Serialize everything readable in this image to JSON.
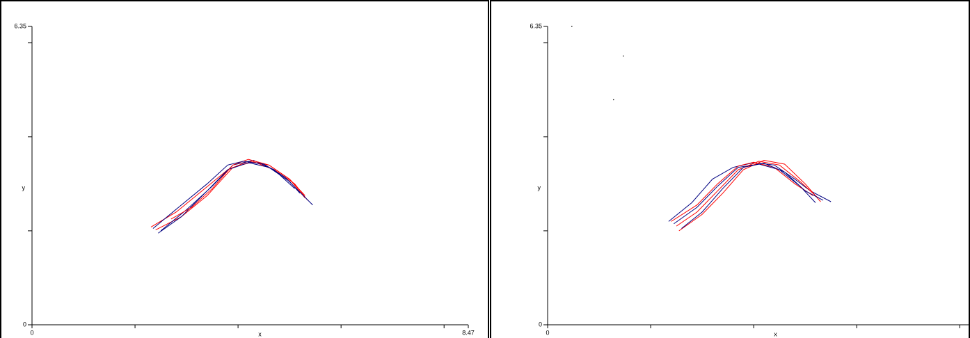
{
  "chart_data": [
    {
      "type": "line",
      "xlabel": "x",
      "ylabel": "y",
      "xlim": [
        0,
        8.47
      ],
      "ylim": [
        0,
        6.35
      ],
      "xticks": [
        2,
        4,
        6,
        8
      ],
      "yticks": [
        2,
        4,
        6
      ],
      "series": [
        {
          "color": "#ff0000",
          "x": [
            2.31,
            2.8,
            3.3,
            3.8,
            4.2,
            4.6,
            5.0,
            5.3
          ],
          "values": [
            2.08,
            2.4,
            2.85,
            3.3,
            3.48,
            3.4,
            3.1,
            2.7
          ]
        },
        {
          "color": "#ff0000",
          "x": [
            2.4,
            2.9,
            3.4,
            3.9,
            4.3,
            4.7,
            5.1,
            5.35
          ],
          "values": [
            2.02,
            2.3,
            2.75,
            3.35,
            3.47,
            3.3,
            3.0,
            2.65
          ]
        },
        {
          "color": "#000080",
          "x": [
            2.45,
            2.9,
            3.4,
            3.8,
            4.2,
            4.6,
            5.0,
            5.2
          ],
          "values": [
            1.95,
            2.3,
            2.85,
            3.3,
            3.45,
            3.35,
            3.05,
            2.8
          ]
        },
        {
          "color": "#000080",
          "x": [
            2.5,
            3.0,
            3.5,
            3.9,
            4.3,
            4.7,
            5.1
          ],
          "values": [
            2.0,
            2.45,
            2.95,
            3.4,
            3.5,
            3.3,
            2.9
          ]
        },
        {
          "color": "#ff0000",
          "x": [
            2.7,
            3.1,
            3.5,
            3.9,
            4.2,
            4.6,
            5.0,
            5.3
          ],
          "values": [
            2.25,
            2.5,
            2.9,
            3.4,
            3.52,
            3.4,
            3.1,
            2.75
          ]
        },
        {
          "color": "#000080",
          "x": [
            2.35,
            2.9,
            3.4,
            3.8,
            4.1,
            4.5,
            4.9,
            5.45
          ],
          "values": [
            2.05,
            2.55,
            3.0,
            3.4,
            3.48,
            3.42,
            3.15,
            2.55
          ]
        }
      ]
    },
    {
      "type": "line",
      "xlabel": "x",
      "ylabel": "y",
      "xlim": [
        0,
        8.47
      ],
      "ylim": [
        0,
        6.35
      ],
      "xticks": [
        2,
        4,
        6,
        8
      ],
      "yticks": [
        2,
        4,
        6
      ],
      "series": [
        {
          "color": "#000080",
          "x": [
            2.35,
            2.8,
            3.2,
            3.6,
            4.0,
            4.4,
            4.8,
            5.1,
            5.5
          ],
          "values": [
            2.2,
            2.6,
            3.1,
            3.35,
            3.45,
            3.4,
            3.1,
            2.85,
            2.62
          ]
        },
        {
          "color": "#000080",
          "x": [
            2.45,
            2.9,
            3.3,
            3.7,
            4.1,
            4.5,
            4.9,
            5.2
          ],
          "values": [
            2.15,
            2.5,
            2.95,
            3.35,
            3.42,
            3.3,
            2.95,
            2.6
          ]
        },
        {
          "color": "#ff0000",
          "x": [
            2.5,
            2.9,
            3.3,
            3.7,
            4.1,
            4.5,
            4.9,
            5.25
          ],
          "values": [
            2.1,
            2.4,
            2.85,
            3.3,
            3.48,
            3.4,
            3.05,
            2.7
          ]
        },
        {
          "color": "#ff0000",
          "x": [
            2.55,
            3.0,
            3.4,
            3.8,
            4.2,
            4.6,
            5.0,
            5.3
          ],
          "values": [
            2.0,
            2.35,
            2.8,
            3.3,
            3.5,
            3.42,
            3.0,
            2.62
          ]
        },
        {
          "color": "#ff0000",
          "x": [
            2.4,
            2.9,
            3.3,
            3.7,
            4.0,
            4.4,
            4.8,
            5.15
          ],
          "values": [
            2.2,
            2.55,
            3.0,
            3.38,
            3.46,
            3.35,
            3.0,
            2.75
          ]
        },
        {
          "color": "#000080",
          "x": [
            2.6,
            3.0,
            3.4,
            3.8,
            4.2,
            4.6,
            5.0,
            5.35
          ],
          "values": [
            2.05,
            2.4,
            2.9,
            3.35,
            3.44,
            3.25,
            2.85,
            2.65
          ]
        }
      ],
      "dots": {
        "x": [
          0.47,
          1.47,
          1.28
        ],
        "values": [
          6.35,
          5.72,
          4.79
        ]
      }
    }
  ]
}
